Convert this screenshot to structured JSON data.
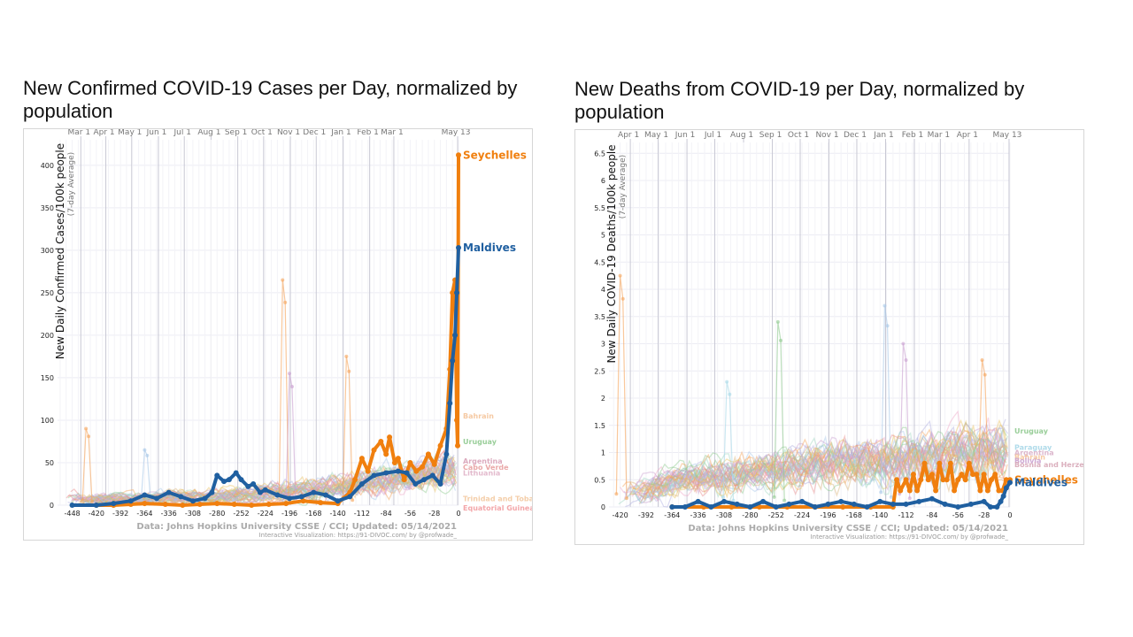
{
  "chart_data": [
    {
      "type": "line",
      "title": "New Confirmed COVID-19 Cases per Day, normalized by population",
      "ylabel": "New Daily Confirmed Cases/100k people",
      "ylabel_sub": "(7-day Average)",
      "xlim": [
        -465,
        0
      ],
      "ylim": [
        0,
        430
      ],
      "x_ticks": [
        -448,
        -420,
        -392,
        -364,
        -336,
        -308,
        -280,
        -252,
        -224,
        -196,
        -168,
        -140,
        -112,
        -84,
        -56,
        -28,
        0
      ],
      "y_ticks": [
        0,
        50,
        100,
        150,
        200,
        250,
        300,
        350,
        400
      ],
      "months": [
        {
          "label": "Mar 1",
          "x": -438
        },
        {
          "label": "Apr 1",
          "x": -409
        },
        {
          "label": "May 1",
          "x": -379
        },
        {
          "label": "Jun 1",
          "x": -348
        },
        {
          "label": "Jul 1",
          "x": -318
        },
        {
          "label": "Aug 1",
          "x": -287
        },
        {
          "label": "Sep 1",
          "x": -256
        },
        {
          "label": "Oct 1",
          "x": -226
        },
        {
          "label": "Nov 1",
          "x": -195
        },
        {
          "label": "Dec 1",
          "x": -165
        },
        {
          "label": "Jan 1",
          "x": -134
        },
        {
          "label": "Feb 1",
          "x": -103
        },
        {
          "label": "Mar 1",
          "x": -75
        },
        {
          "label": "May 13",
          "x": -1
        }
      ],
      "series": [
        {
          "name": "Seychelles",
          "color": "#f07f0e",
          "x": [
            -420,
            -400,
            -380,
            -364,
            -340,
            -320,
            -300,
            -280,
            -260,
            -240,
            -220,
            -200,
            -180,
            -160,
            -140,
            -126,
            -120,
            -112,
            -105,
            -98,
            -90,
            -84,
            -80,
            -74,
            -70,
            -63,
            -56,
            -49,
            -42,
            -35,
            -28,
            -21,
            -14,
            -10,
            -7,
            -4,
            -2,
            -1,
            0
          ],
          "values": [
            0,
            0,
            1,
            2,
            1,
            0,
            1,
            2,
            1,
            0,
            1,
            2,
            5,
            3,
            2,
            15,
            30,
            55,
            40,
            65,
            75,
            60,
            80,
            50,
            55,
            30,
            50,
            40,
            45,
            60,
            48,
            70,
            90,
            160,
            250,
            265,
            100,
            70,
            412
          ]
        },
        {
          "name": "Maldives",
          "color": "#1f5fa0",
          "x": [
            -448,
            -420,
            -400,
            -380,
            -364,
            -350,
            -336,
            -322,
            -308,
            -294,
            -286,
            -280,
            -272,
            -266,
            -258,
            -252,
            -244,
            -238,
            -230,
            -224,
            -210,
            -196,
            -182,
            -168,
            -154,
            -140,
            -126,
            -112,
            -98,
            -84,
            -70,
            -60,
            -50,
            -40,
            -30,
            -21,
            -14,
            -10,
            -7,
            -4,
            -2,
            0
          ],
          "values": [
            0,
            0,
            2,
            5,
            12,
            8,
            15,
            10,
            5,
            8,
            15,
            35,
            28,
            30,
            38,
            30,
            22,
            25,
            15,
            18,
            12,
            8,
            10,
            15,
            12,
            5,
            10,
            25,
            35,
            38,
            40,
            38,
            25,
            30,
            35,
            25,
            60,
            120,
            170,
            200,
            250,
            303
          ]
        },
        {
          "name": "Bahrain",
          "values_note": "label only",
          "color": "#f5c49a"
        },
        {
          "name": "Uruguay",
          "color": "#8fc98f"
        },
        {
          "name": "Argentina",
          "color": "#d9a2b8"
        },
        {
          "name": "Cabo Verde",
          "color": "#e8a0a0"
        },
        {
          "name": "Lithuania",
          "color": "#e0b3c8"
        },
        {
          "name": "Trinidad and Tobago",
          "color": "#f3c9a0"
        },
        {
          "name": "Equatorial Guinea",
          "color": "#f29da0"
        }
      ],
      "source": "Data: Johns Hopkins University CSSE / CCI; Updated: 05/14/2021",
      "credit": "Interactive Visualization: https://91-DIVOC.com/ by @profwade_"
    },
    {
      "type": "line",
      "title": "New Deaths from COVID-19 per Day, normalized by population",
      "ylabel": "New Daily COVID-19 Deaths/100k people",
      "ylabel_sub": "(7-day Average)",
      "xlim": [
        -432,
        0
      ],
      "ylim": [
        0,
        6.7
      ],
      "x_ticks": [
        -420,
        -392,
        -364,
        -336,
        -308,
        -280,
        -252,
        -224,
        -196,
        -168,
        -140,
        -112,
        -84,
        -56,
        -28,
        0
      ],
      "y_ticks": [
        0,
        0.5,
        1,
        1.5,
        2,
        2.5,
        3,
        3.5,
        4,
        4.5,
        5,
        5.5,
        6,
        6.5
      ],
      "months": [
        {
          "label": "Apr 1",
          "x": -409
        },
        {
          "label": "May 1",
          "x": -379
        },
        {
          "label": "Jun 1",
          "x": -348
        },
        {
          "label": "Jul 1",
          "x": -318
        },
        {
          "label": "Aug 1",
          "x": -287
        },
        {
          "label": "Sep 1",
          "x": -256
        },
        {
          "label": "Oct 1",
          "x": -226
        },
        {
          "label": "Nov 1",
          "x": -195
        },
        {
          "label": "Dec 1",
          "x": -165
        },
        {
          "label": "Jan 1",
          "x": -134
        },
        {
          "label": "Feb 1",
          "x": -103
        },
        {
          "label": "Mar 1",
          "x": -75
        },
        {
          "label": "Apr 1",
          "x": -44
        },
        {
          "label": "May 13",
          "x": -1
        }
      ],
      "series": [
        {
          "name": "Seychelles",
          "color": "#f07f0e",
          "x": [
            -364,
            -330,
            -300,
            -270,
            -240,
            -210,
            -180,
            -150,
            -126,
            -122,
            -118,
            -112,
            -108,
            -104,
            -100,
            -96,
            -92,
            -88,
            -84,
            -80,
            -76,
            -72,
            -68,
            -64,
            -60,
            -56,
            -52,
            -48,
            -44,
            -40,
            -36,
            -32,
            -28,
            -24,
            -20,
            -16,
            -12,
            -8,
            -4,
            0
          ],
          "values": [
            0,
            0,
            0,
            0,
            0,
            0,
            0,
            0,
            0,
            0.5,
            0.3,
            0.5,
            0.3,
            0.6,
            0.3,
            0.5,
            0.8,
            0.5,
            0.6,
            0.3,
            0.8,
            0.5,
            0.5,
            0.8,
            0.3,
            0.5,
            0.6,
            0.5,
            0.8,
            0.6,
            0.6,
            0.3,
            0.6,
            0.3,
            0.5,
            0.6,
            0.3,
            0.3,
            0.5,
            0.5
          ]
        },
        {
          "name": "Maldives",
          "color": "#1f5fa0",
          "x": [
            -364,
            -350,
            -336,
            -322,
            -308,
            -294,
            -280,
            -266,
            -252,
            -238,
            -224,
            -210,
            -196,
            -182,
            -168,
            -154,
            -140,
            -126,
            -112,
            -98,
            -84,
            -70,
            -56,
            -42,
            -28,
            -21,
            -14,
            -10,
            -7,
            -4,
            0
          ],
          "values": [
            0,
            0,
            0.1,
            0,
            0.1,
            0.05,
            0,
            0.1,
            0,
            0.05,
            0.1,
            0,
            0.05,
            0.1,
            0.05,
            0,
            0.1,
            0.05,
            0.05,
            0.1,
            0.15,
            0.05,
            0,
            0.05,
            0.1,
            0,
            0,
            0.1,
            0.2,
            0.35,
            0.45
          ]
        },
        {
          "name": "Uruguay",
          "color": "#8fc98f"
        },
        {
          "name": "Paraguay",
          "color": "#a8d8e8"
        },
        {
          "name": "Argentina",
          "color": "#d9b0c8"
        },
        {
          "name": "Bahrain",
          "color": "#f5c49a"
        },
        {
          "name": "Bolivia",
          "color": "#c9a0d0"
        },
        {
          "name": "Bosnia and Herzegovina",
          "color": "#d8a8b8"
        }
      ],
      "source": "Data: Johns Hopkins University CSSE / CCI; Updated: 05/14/2021",
      "credit": "Interactive Visualization: https://91-DIVOC.com/ by @profwade_"
    }
  ],
  "labels": {
    "left_title_line1": "New Confirmed COVID-19 Cases per Day, normalized by",
    "left_title_line2": "population",
    "right_title_line1": "New Deaths from COVID-19 per Day, normalized by",
    "right_title_line2": "population",
    "left_minor": [
      "Argentina",
      "Cabo Verde",
      "Lithuania",
      "Trinidad and Toba",
      "Equatorial Guinea"
    ],
    "right_minor": [
      "Paraguay",
      "Argentina",
      "Bahrain",
      "Bolivia",
      "Bosnia and Herzeg"
    ]
  },
  "colors": {
    "palette": [
      "#f5a35a",
      "#8fc98f",
      "#e88c8c",
      "#a8c8e8",
      "#c9a0d0",
      "#d9b37a",
      "#f0a8c8",
      "#a0d8c0",
      "#e8c060",
      "#b0b0e0"
    ]
  }
}
